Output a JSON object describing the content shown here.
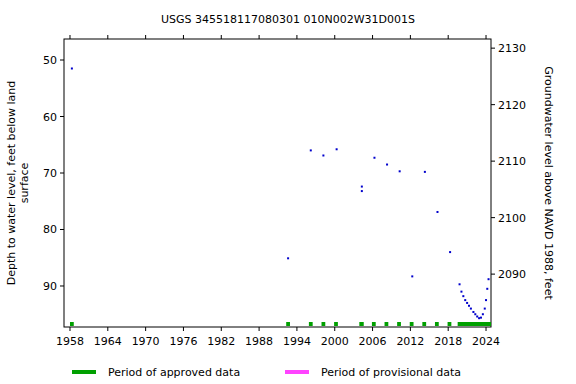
{
  "chart_data": {
    "type": "scatter",
    "title": "USGS 345518117080301 010N002W31D001S",
    "y_label": [
      "Depth to water level, feet below land",
      "surface"
    ],
    "y2_label": "Groundwater level above NAVD 1988, feet",
    "x": [
      1958.3,
      1992.6,
      1996.2,
      1998.2,
      2000.3,
      2004.3,
      2004.3,
      2006.3,
      2008.3,
      2010.3,
      2012.3,
      2014.3,
      2016.3,
      2018.3,
      2019.8,
      2020.1,
      2020.4,
      2020.7,
      2021.0,
      2021.3,
      2021.6,
      2022.0,
      2022.3,
      2022.6,
      2022.9,
      2023.2,
      2023.5,
      2023.8,
      2024.0,
      2024.2,
      2024.4
    ],
    "series": [
      {
        "color": "#0000cc",
        "marker": "dot",
        "values": [
          51.5,
          85.1,
          66.0,
          66.9,
          65.8,
          72.4,
          73.2,
          67.3,
          68.5,
          69.7,
          88.3,
          69.8,
          76.9,
          84.0,
          89.7,
          91.0,
          91.8,
          92.5,
          93.0,
          93.5,
          94.0,
          94.6,
          95.0,
          95.4,
          95.7,
          95.6,
          95.0,
          94.0,
          92.5,
          90.5,
          88.8
        ]
      }
    ],
    "xlim": [
      1957.05,
      2024.79
    ],
    "ylim": [
      97.26,
      46.28
    ],
    "y2lim": [
      2080.64,
      2131.62
    ],
    "xticks": [
      1958,
      1964,
      1970,
      1976,
      1982,
      1988,
      1994,
      2000,
      2006,
      2012,
      2018,
      2024
    ],
    "yticks": [
      50,
      60,
      70,
      80,
      90
    ],
    "y2ticks": [
      2090,
      2100,
      2110,
      2120,
      2130
    ],
    "periods": [
      {
        "name": "Period of approved data",
        "color": "#00a000",
        "ranges": [
          [
            1958.0,
            1958.6
          ],
          [
            1992.3,
            1992.9
          ],
          [
            1995.9,
            1996.5
          ],
          [
            1997.9,
            1998.5
          ],
          [
            1999.9,
            2000.5
          ],
          [
            2003.9,
            2004.6
          ],
          [
            2005.9,
            2006.5
          ],
          [
            2007.9,
            2008.5
          ],
          [
            2009.9,
            2010.5
          ],
          [
            2011.9,
            2012.5
          ],
          [
            2013.9,
            2014.5
          ],
          [
            2015.9,
            2016.5
          ],
          [
            2017.9,
            2018.5
          ],
          [
            2019.5,
            2024.8
          ]
        ]
      },
      {
        "name": "Period of provisional data",
        "color": "#ff44ff",
        "ranges": []
      }
    ],
    "grid": false,
    "legend": "bottom"
  }
}
